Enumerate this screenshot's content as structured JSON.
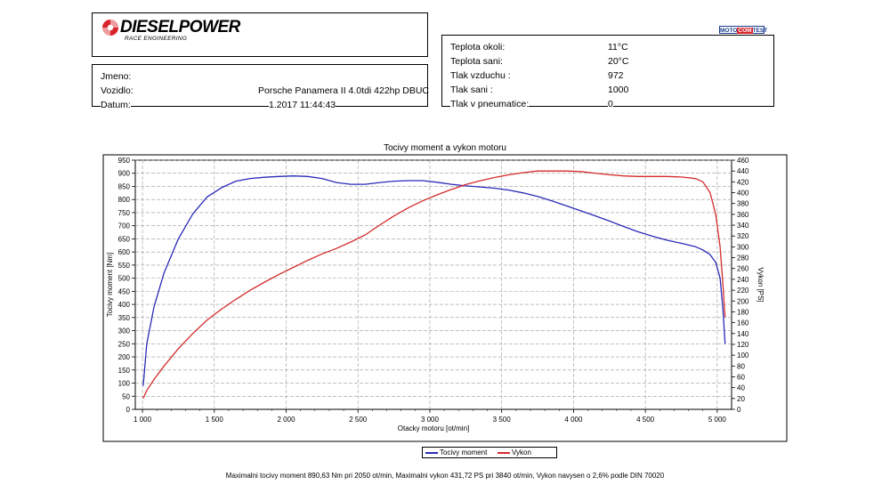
{
  "logo": {
    "brand": "DIESELPOWER",
    "subtitle": "RACE ENGINEERING",
    "accent": "#d8232a"
  },
  "badge": {
    "left": "MOTO",
    "mid": "COM",
    "right": "TEST"
  },
  "vehicle": {
    "jmeno_label": "Jmeno:",
    "vozidlo_label": "Vozidlo:",
    "vozidlo_value": "Porsche Panamera II 4.0tdi 422hp DBUC",
    "datum_label": "Datum:",
    "datum_value": "1.2017 11:44:43"
  },
  "conditions": [
    {
      "label": "Teplota okoli:",
      "value": "11°C"
    },
    {
      "label": "Teplota sani:",
      "value": "20°C"
    },
    {
      "label": "Tlak vzduchu :",
      "value": "972"
    },
    {
      "label": "Tlak sani :",
      "value": "1000"
    },
    {
      "label": "Tlak v pneumatice:",
      "value": "0"
    }
  ],
  "footer": "Maximalni tocivy moment 890,63 Nm pri 2050 ot/min,  Maximalni vykon 431,72 PS pri 3840 ot/min,  Vykon navysen o 2,6% podle DIN 70020",
  "chart_data": {
    "type": "line",
    "title": "Tocivy moment a vykon motoru",
    "xlabel": "Otacky motoru [ot/min]",
    "ylabel": "Tocivy moment [Nm]",
    "y2label": "Vykon [PS]",
    "xlim": [
      950,
      5100
    ],
    "ylim": [
      0,
      950
    ],
    "y2lim": [
      0,
      460
    ],
    "x_ticks": [
      1000,
      1500,
      2000,
      2500,
      3000,
      3500,
      4000,
      4500,
      5000
    ],
    "x_tick_labels": [
      "1 000",
      "1 500",
      "2 000",
      "2 500",
      "3 000",
      "3 500",
      "4 000",
      "4 500",
      "5 000"
    ],
    "y_ticks": [
      0,
      50,
      100,
      150,
      200,
      250,
      300,
      350,
      400,
      450,
      500,
      550,
      600,
      650,
      700,
      750,
      800,
      850,
      900,
      950
    ],
    "y2_ticks": [
      0,
      20,
      40,
      60,
      80,
      100,
      120,
      140,
      160,
      180,
      200,
      220,
      240,
      260,
      280,
      300,
      320,
      340,
      360,
      380,
      400,
      420,
      440,
      460
    ],
    "grid": true,
    "legend": "bottom-center",
    "series": [
      {
        "name": "Tocivy moment",
        "axis": "left",
        "color": "#2929b8",
        "x": [
          1005,
          1030,
          1080,
          1150,
          1250,
          1350,
          1450,
          1550,
          1650,
          1750,
          1850,
          1950,
          2050,
          2150,
          2250,
          2350,
          2450,
          2550,
          2650,
          2750,
          2850,
          2950,
          3050,
          3150,
          3250,
          3350,
          3450,
          3550,
          3650,
          3750,
          3850,
          3950,
          4050,
          4150,
          4250,
          4350,
          4450,
          4550,
          4650,
          4750,
          4850,
          4900,
          4950,
          4990,
          5020,
          5040,
          5055
        ],
        "y": [
          90,
          250,
          390,
          520,
          650,
          745,
          810,
          845,
          870,
          880,
          885,
          888,
          890,
          888,
          880,
          865,
          858,
          858,
          865,
          870,
          872,
          872,
          866,
          858,
          852,
          848,
          843,
          836,
          825,
          812,
          795,
          776,
          757,
          738,
          718,
          697,
          677,
          660,
          645,
          633,
          620,
          608,
          590,
          560,
          500,
          380,
          250
        ]
      },
      {
        "name": "Vykon",
        "axis": "right",
        "color": "#d42a2a",
        "x": [
          1005,
          1030,
          1080,
          1150,
          1250,
          1350,
          1450,
          1550,
          1650,
          1750,
          1850,
          1950,
          2050,
          2150,
          2250,
          2350,
          2450,
          2550,
          2650,
          2750,
          2850,
          2950,
          3050,
          3150,
          3250,
          3350,
          3450,
          3550,
          3650,
          3750,
          3850,
          3950,
          4050,
          4150,
          4250,
          4350,
          4450,
          4550,
          4650,
          4750,
          4850,
          4900,
          4950,
          4990,
          5020,
          5040,
          5055
        ],
        "y": [
          20,
          35,
          55,
          80,
          112,
          140,
          165,
          185,
          203,
          220,
          235,
          249,
          262,
          275,
          287,
          297,
          309,
          322,
          340,
          357,
          372,
          385,
          396,
          406,
          415,
          422,
          428,
          433,
          437,
          440,
          440,
          440,
          439,
          436,
          433,
          431,
          430,
          430,
          430,
          429,
          426,
          420,
          400,
          360,
          300,
          230,
          170
        ]
      }
    ]
  }
}
